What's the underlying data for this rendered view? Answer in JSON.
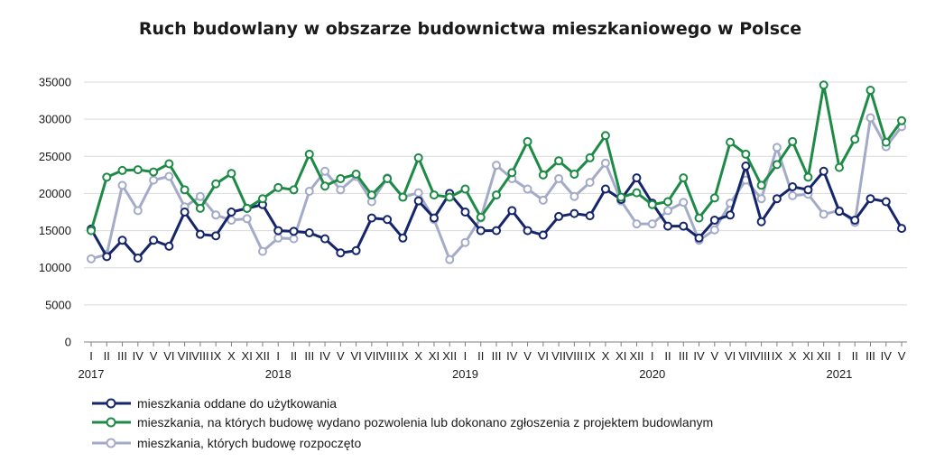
{
  "chart_data": {
    "type": "line",
    "title": "Ruch budowlany w obszarze budownictwa mieszkaniowego w Polsce",
    "xlabel": "",
    "ylabel": "",
    "ylim": [
      0,
      35000
    ],
    "yticks": [
      0,
      5000,
      10000,
      15000,
      20000,
      25000,
      30000,
      35000
    ],
    "grid": "horizontal",
    "legend_position": "bottom",
    "month_labels": [
      "I",
      "II",
      "III",
      "IV",
      "V",
      "VI",
      "VII",
      "VIII",
      "IX",
      "X",
      "XI",
      "XII",
      "I",
      "II",
      "III",
      "IV",
      "V",
      "VI",
      "VII",
      "VIII",
      "IX",
      "X",
      "XI",
      "XII",
      "I",
      "II",
      "III",
      "IV",
      "V",
      "VI",
      "VII",
      "VIII",
      "IX",
      "X",
      "XI",
      "XII",
      "I",
      "II",
      "III",
      "IV",
      "V",
      "VI",
      "VII",
      "VIII",
      "IX",
      "X",
      "XI",
      "XII",
      "I",
      "II",
      "III",
      "IV",
      "V"
    ],
    "year_labels": [
      {
        "label": "2017",
        "index": 0
      },
      {
        "label": "2018",
        "index": 12
      },
      {
        "label": "2019",
        "index": 24
      },
      {
        "label": "2020",
        "index": 36
      },
      {
        "label": "2021",
        "index": 48
      }
    ],
    "series": [
      {
        "name": "mieszkania oddane do użytkowania",
        "color": "#15256b",
        "values": [
          15200,
          11500,
          13700,
          11300,
          13700,
          12900,
          17500,
          14500,
          14300,
          17500,
          18000,
          18500,
          15000,
          14900,
          14700,
          13900,
          12000,
          12300,
          16700,
          16500,
          14000,
          19000,
          16700,
          20000,
          17500,
          15000,
          15000,
          17700,
          15000,
          14400,
          16900,
          17300,
          17000,
          20600,
          19200,
          22100,
          18700,
          15600,
          15600,
          14000,
          16400,
          17100,
          23700,
          16200,
          19300,
          20900,
          20500,
          23000,
          17600,
          16400,
          19300,
          18900,
          15300
        ]
      },
      {
        "name": "mieszkania, na których budowę wydano pozwolenia lub dokonano zgłoszenia z projektem budowlanym",
        "color": "#1d8a45",
        "values": [
          15000,
          22200,
          23100,
          23200,
          22900,
          24000,
          20500,
          18000,
          21300,
          22700,
          18000,
          19300,
          20800,
          20500,
          25300,
          21000,
          22000,
          22600,
          19800,
          22000,
          19500,
          24800,
          19800,
          19500,
          20600,
          16800,
          19800,
          22800,
          27000,
          22500,
          24400,
          22600,
          24800,
          27800,
          19500,
          20100,
          18500,
          18900,
          22100,
          16700,
          19400,
          26900,
          25300,
          21100,
          23900,
          27000,
          22200,
          34600,
          23500,
          27300,
          33900,
          26900,
          29800
        ]
      },
      {
        "name": "mieszkania, których budowę rozpoczęto",
        "color": "#a4abc9",
        "values": [
          11200,
          11800,
          21100,
          17700,
          21800,
          22300,
          18200,
          19600,
          17100,
          16400,
          16600,
          12200,
          14000,
          13900,
          20300,
          23000,
          20500,
          22300,
          18900,
          22100,
          19500,
          20100,
          16500,
          11100,
          13400,
          16700,
          23800,
          22000,
          20600,
          19100,
          22000,
          19600,
          21500,
          24100,
          19000,
          15900,
          15900,
          17700,
          18800,
          13700,
          15100,
          18700,
          21800,
          19300,
          26200,
          19700,
          19900,
          17200,
          17700,
          16100,
          30200,
          26300,
          29000
        ]
      }
    ]
  }
}
